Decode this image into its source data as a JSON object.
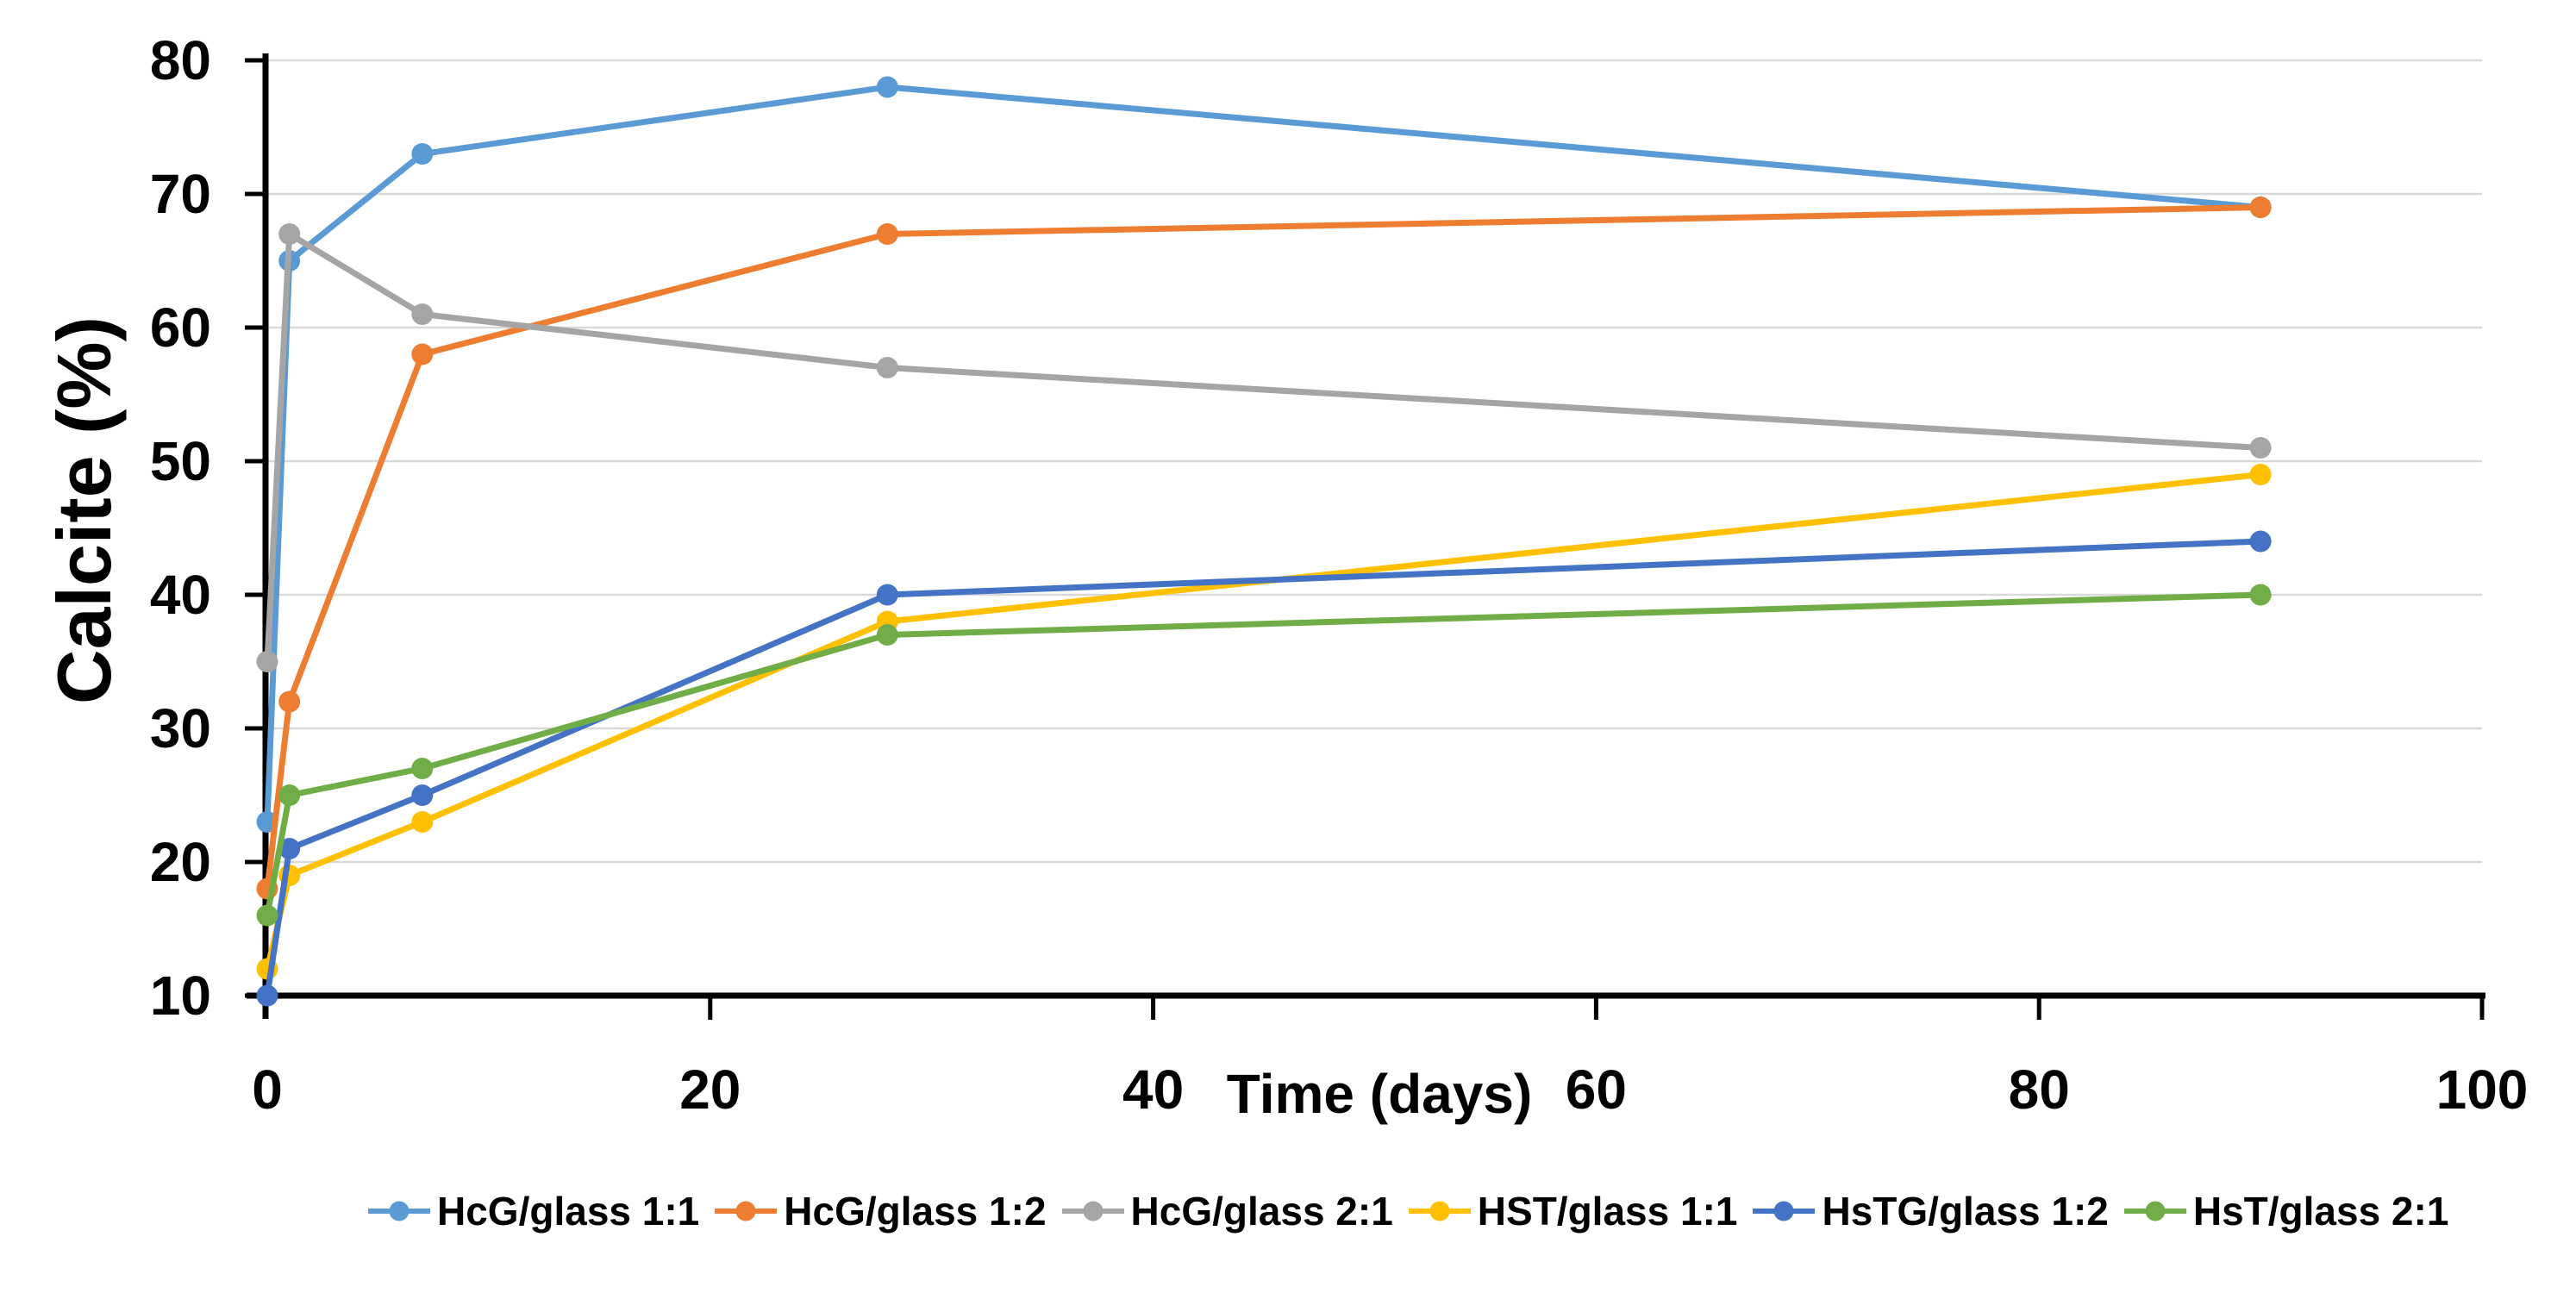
{
  "figure": {
    "background": "#FFFFFF",
    "text_color": "#000000",
    "gridline_color": "#D9D9D9",
    "axis_color": "#000000"
  },
  "chart_data": {
    "type": "line",
    "title": "",
    "xlabel": "Time (days)",
    "ylabel": "Calcite (%)",
    "x": [
      0,
      1,
      7,
      28,
      90
    ],
    "xlim": [
      0,
      100
    ],
    "ylim": [
      10,
      80
    ],
    "x_ticks": [
      0,
      20,
      40,
      60,
      80,
      100
    ],
    "y_ticks": [
      10,
      20,
      30,
      40,
      50,
      60,
      70,
      80
    ],
    "grid": "horizontal",
    "marker": "circle",
    "legend_position": "bottom",
    "series": [
      {
        "name": "HcG/glass 1:1",
        "color": "#5B9BD5",
        "values": [
          23,
          65,
          73,
          78,
          69
        ]
      },
      {
        "name": "HcG/glass 1:2",
        "color": "#ED7D31",
        "values": [
          18,
          32,
          58,
          67,
          69
        ]
      },
      {
        "name": "HcG/glass 2:1",
        "color": "#A5A5A5",
        "values": [
          35,
          67,
          61,
          57,
          51
        ]
      },
      {
        "name": "HST/glass 1:1",
        "color": "#FFC000",
        "values": [
          12,
          19,
          23,
          38,
          49
        ]
      },
      {
        "name": "HsTG/glass 1:2",
        "color": "#4472C4",
        "values": [
          10,
          21,
          25,
          40,
          44
        ]
      },
      {
        "name": "HsT/glass 2:1",
        "color": "#70AD47",
        "values": [
          16,
          25,
          27,
          37,
          40
        ]
      }
    ]
  }
}
